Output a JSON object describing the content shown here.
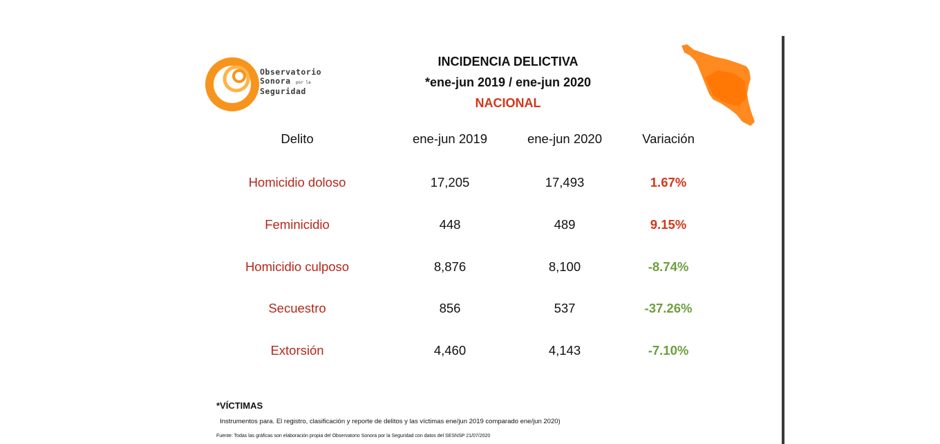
{
  "logo": {
    "line1": "Observatorio",
    "line2": "Sonora",
    "line2_small": "por la",
    "line3": "Seguridad"
  },
  "header": {
    "title": "INCIDENCIA DELICTIVA",
    "period": "*ene-jun 2019 / ene-jun 2020",
    "scope": "NACIONAL"
  },
  "map": {
    "icon": "sonora-map-icon",
    "color": "#ff8a1f"
  },
  "table": {
    "columns": [
      "Delito",
      "ene-jun 2019",
      "ene-jun 2020",
      "Variación"
    ],
    "rows": [
      {
        "crime": "Homicidio doloso",
        "y2019": "17,205",
        "y2020": "17,493",
        "variation": "1.67%",
        "trend": "up"
      },
      {
        "crime": "Feminicidio",
        "y2019": "448",
        "y2020": "489",
        "variation": "9.15%",
        "trend": "up"
      },
      {
        "crime": "Homicidio culposo",
        "y2019": "8,876",
        "y2020": "8,100",
        "variation": "-8.74%",
        "trend": "down"
      },
      {
        "crime": "Secuestro",
        "y2019": "856",
        "y2020": "537",
        "variation": "-37.26%",
        "trend": "down"
      },
      {
        "crime": "Extorsión",
        "y2019": "4,460",
        "y2020": "4,143",
        "variation": "-7.10%",
        "trend": "down"
      }
    ]
  },
  "notes": {
    "heading": "*VÍCTIMAS",
    "text": "Instrumentos para. El registro, clasificación y reporte de delitos y las víctimas ene/jun 2019 comparado ene/jun 2020)",
    "source": "Fuente: Todas las gráficas son elaboración propia del Observatorio Sonora por la Seguridad con datos del SESNSP 21/07/2020"
  },
  "colors": {
    "accent_red": "#d3361b",
    "crime_red": "#b5281b",
    "green": "#6c9f3c",
    "orange": "#f7941d"
  }
}
